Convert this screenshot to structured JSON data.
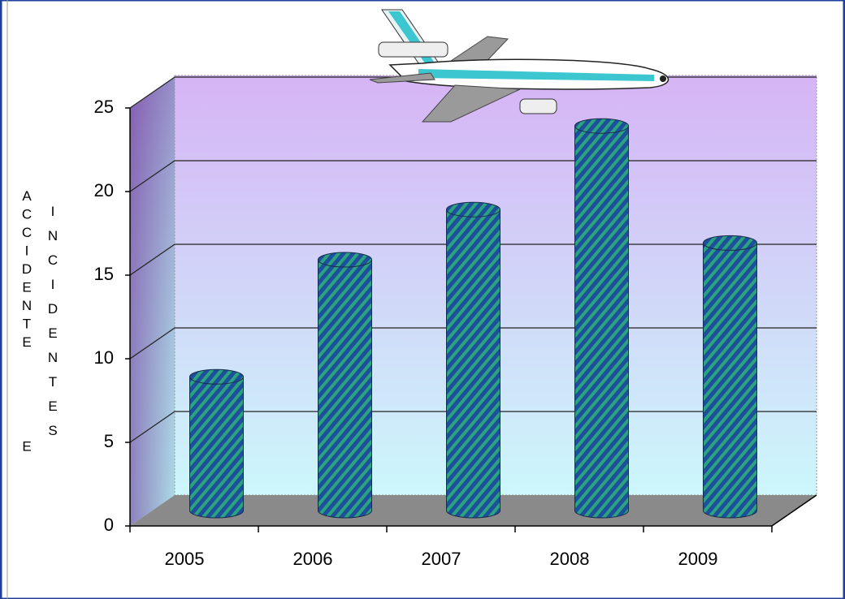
{
  "chart_data": {
    "type": "bar",
    "y_label": [
      "ACCIDENTE E",
      "INCIDENTES"
    ],
    "categories": [
      "2005",
      "2006",
      "2007",
      "2008",
      "2009"
    ],
    "values": [
      8,
      15,
      18,
      23,
      16
    ],
    "color": "#1d4f9c",
    "hatch_color": "#2aa37e",
    "ylim": [
      0,
      25
    ],
    "yticks": [
      0,
      5,
      10,
      15,
      20,
      25
    ],
    "grid": true
  }
}
